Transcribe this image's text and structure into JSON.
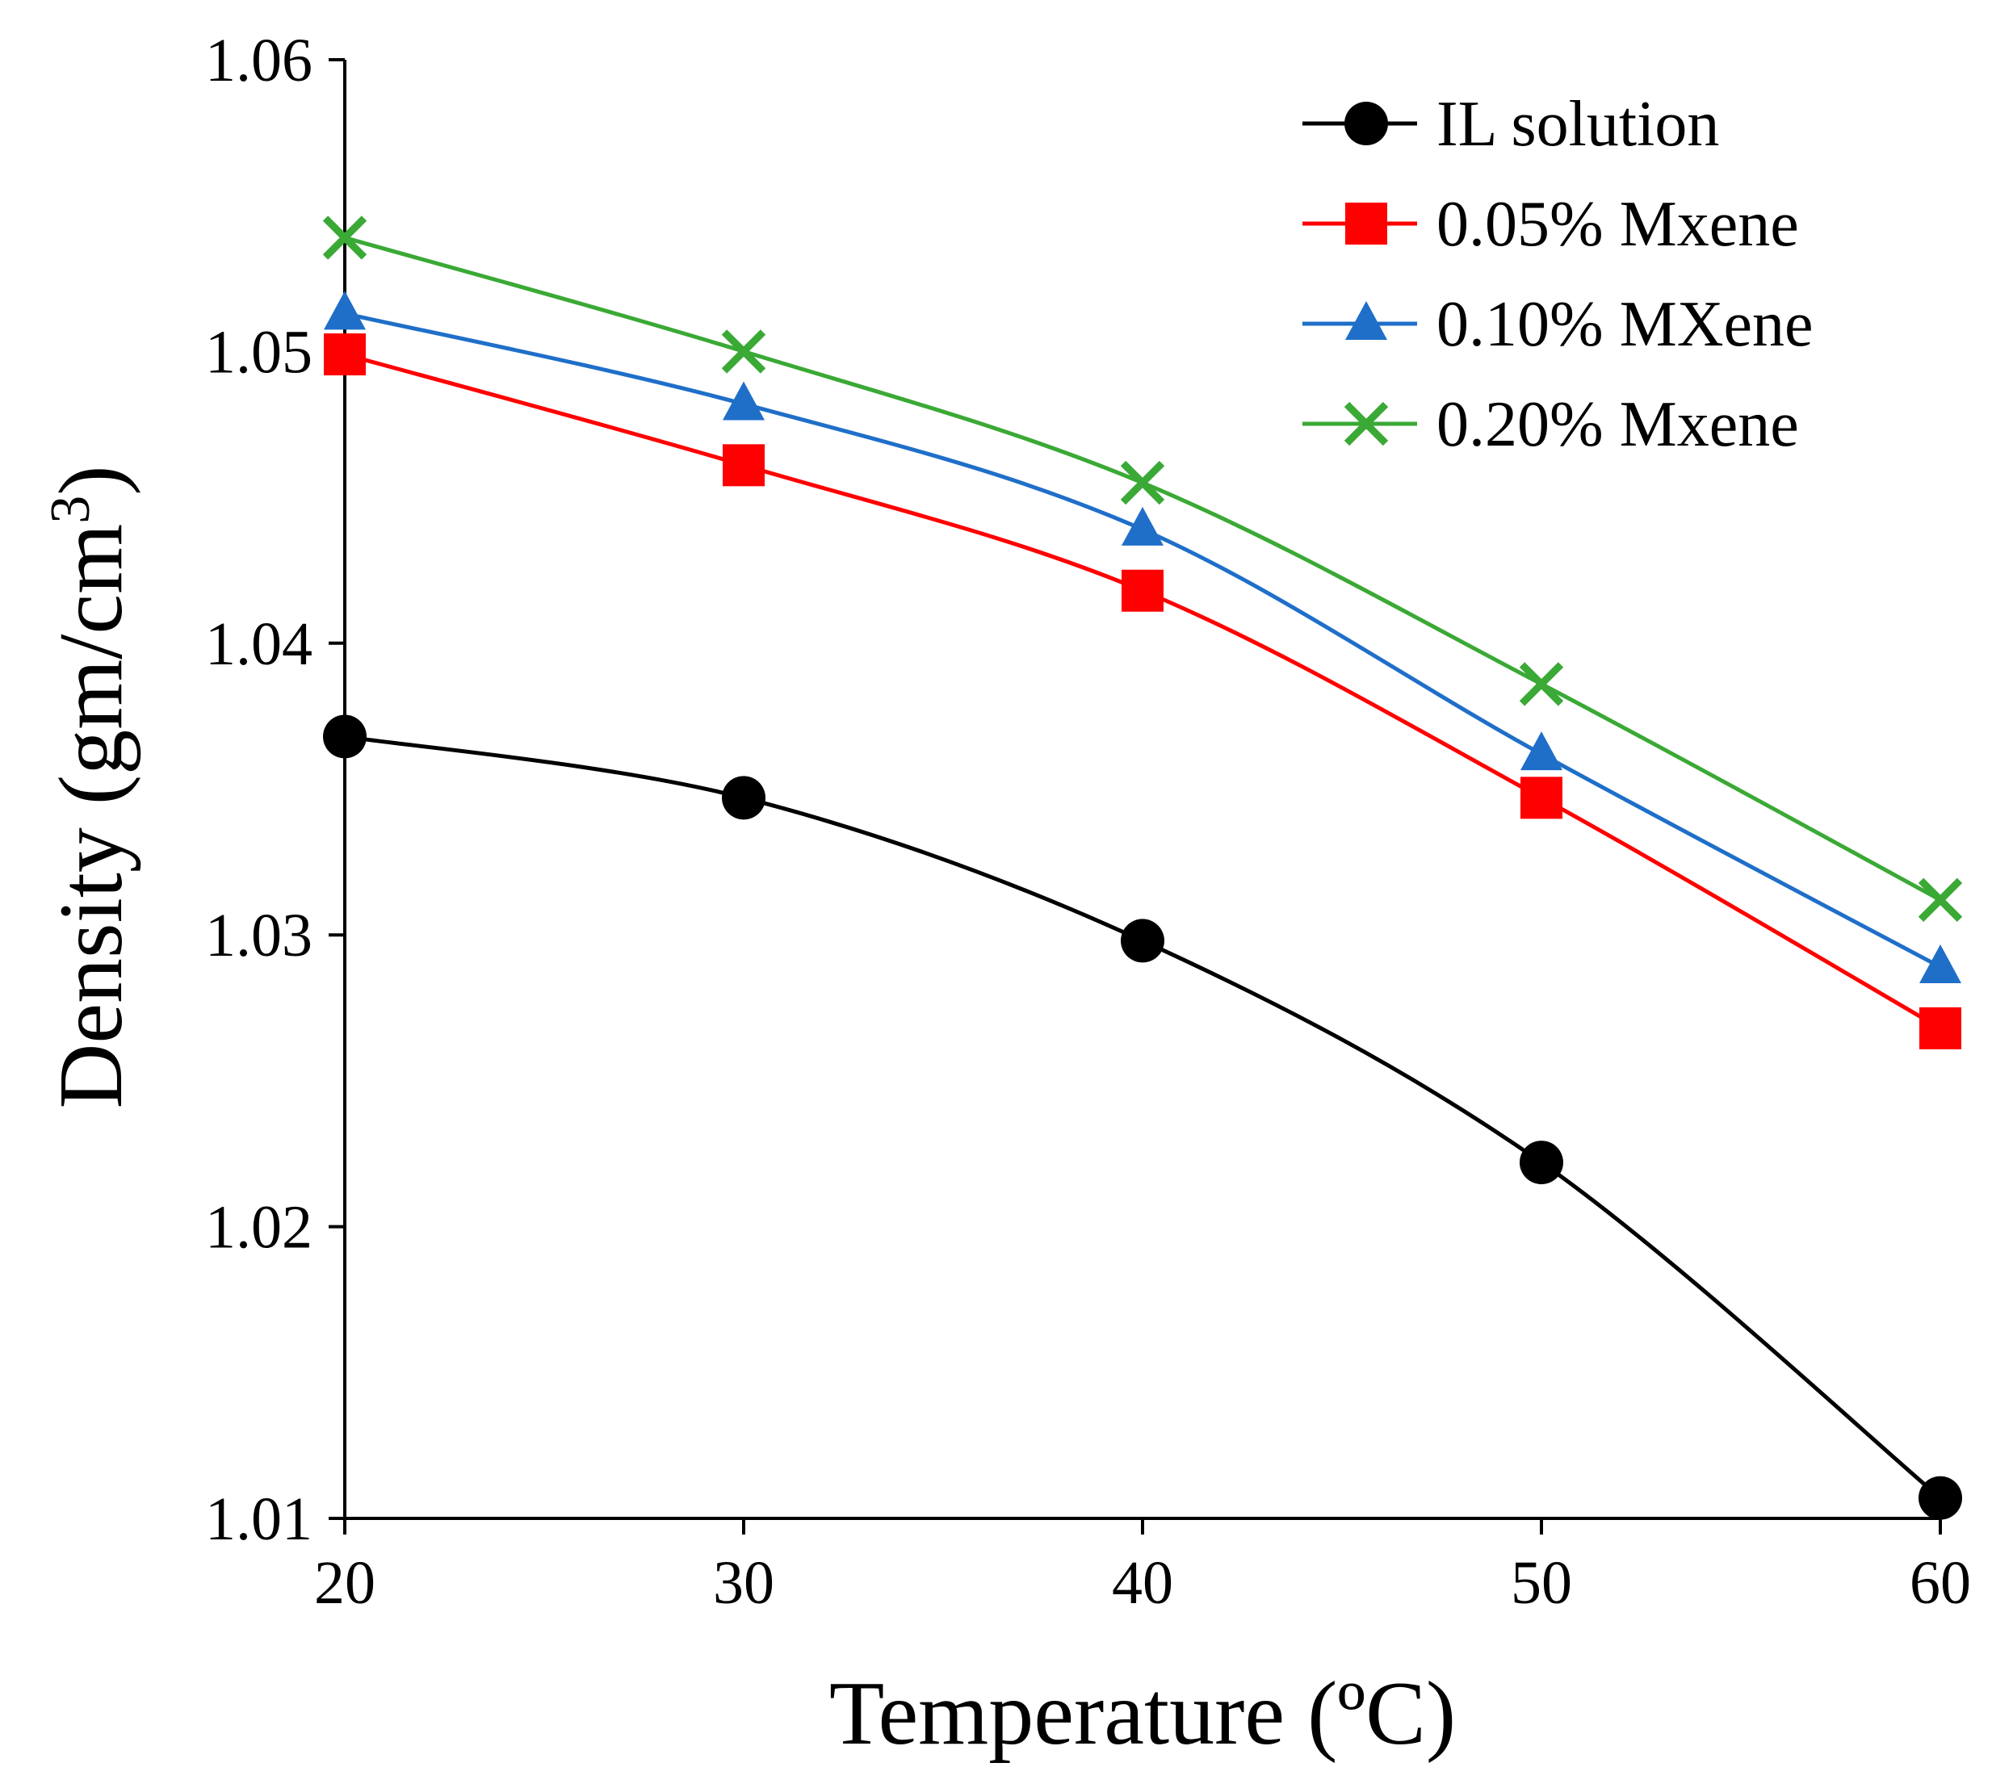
{
  "chart_data": {
    "type": "line",
    "title": "",
    "xlabel": "Temperature (ºC)",
    "ylabel_main": "Density (gm/cm",
    "ylabel_sup": "3",
    "ylabel_close": ")",
    "xlim": [
      20,
      60
    ],
    "ylim": [
      1.01,
      1.06
    ],
    "xticks": [
      "20",
      "30",
      "40",
      "50",
      "60"
    ],
    "yticks": [
      "1.01",
      "1.02",
      "1.03",
      "1.04",
      "1.05",
      "1.06"
    ],
    "grid": false,
    "legend_position": "top-right",
    "x": [
      20,
      30,
      40,
      50,
      60
    ],
    "series": [
      {
        "name": "IL solution",
        "color": "#000000",
        "marker": "circle",
        "values": [
          1.0368,
          1.0347,
          1.0298,
          1.0222,
          1.0107
        ]
      },
      {
        "name": "0.05% Mxene",
        "color": "#ff0000",
        "marker": "square",
        "values": [
          1.0499,
          1.0461,
          1.0418,
          1.0347,
          1.0268
        ]
      },
      {
        "name": "0.10% MXene",
        "color": "#1f6fc9",
        "marker": "triangle",
        "values": [
          1.0513,
          1.0482,
          1.0439,
          1.0362,
          1.0289
        ]
      },
      {
        "name": "0.20% Mxene",
        "color": "#3aa935",
        "marker": "x",
        "values": [
          1.0539,
          1.05,
          1.0455,
          1.0386,
          1.0312
        ]
      }
    ]
  }
}
